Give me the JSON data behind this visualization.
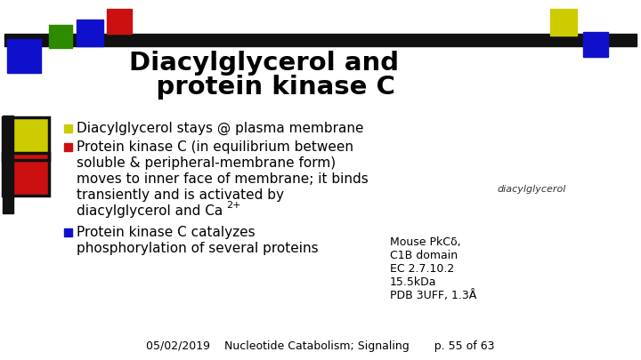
{
  "bg_color": "#ffffff",
  "title_line1": "Diacylglycerol and",
  "title_line2": "   protein kinase C",
  "bullet1": "Diacylglycerol stays @ plasma membrane",
  "bullet2_lines": [
    "Protein kinase C (in equilibrium between",
    "soluble & peripheral-membrane form)",
    "moves to inner face of membrane; it binds",
    "transiently and is activated by",
    "diacylglycerol and Ca"
  ],
  "bullet2_super": "2+",
  "bullet3_lines": [
    "Protein kinase C catalyzes",
    "phosphorylation of several proteins"
  ],
  "annotation": [
    "Mouse PkCδ,",
    "C1B domain",
    "EC 2.7.10.2",
    "15.5kDa",
    "PDB 3UFF, 1.3Å"
  ],
  "footer": "05/02/2019    Nucleotide Catabolism; Signaling       p. 55 of 63",
  "diacylglycerol_label": "diacylglycerol",
  "sq_green": "#2e8b00",
  "sq_blue": "#1010cc",
  "sq_red": "#cc1010",
  "sq_yellow": "#cccc00",
  "bar_color": "#111111",
  "bullet_sq_yellow": "#cccc00",
  "bullet_sq_red": "#cc1010",
  "bullet_sq_blue": "#1010cc"
}
